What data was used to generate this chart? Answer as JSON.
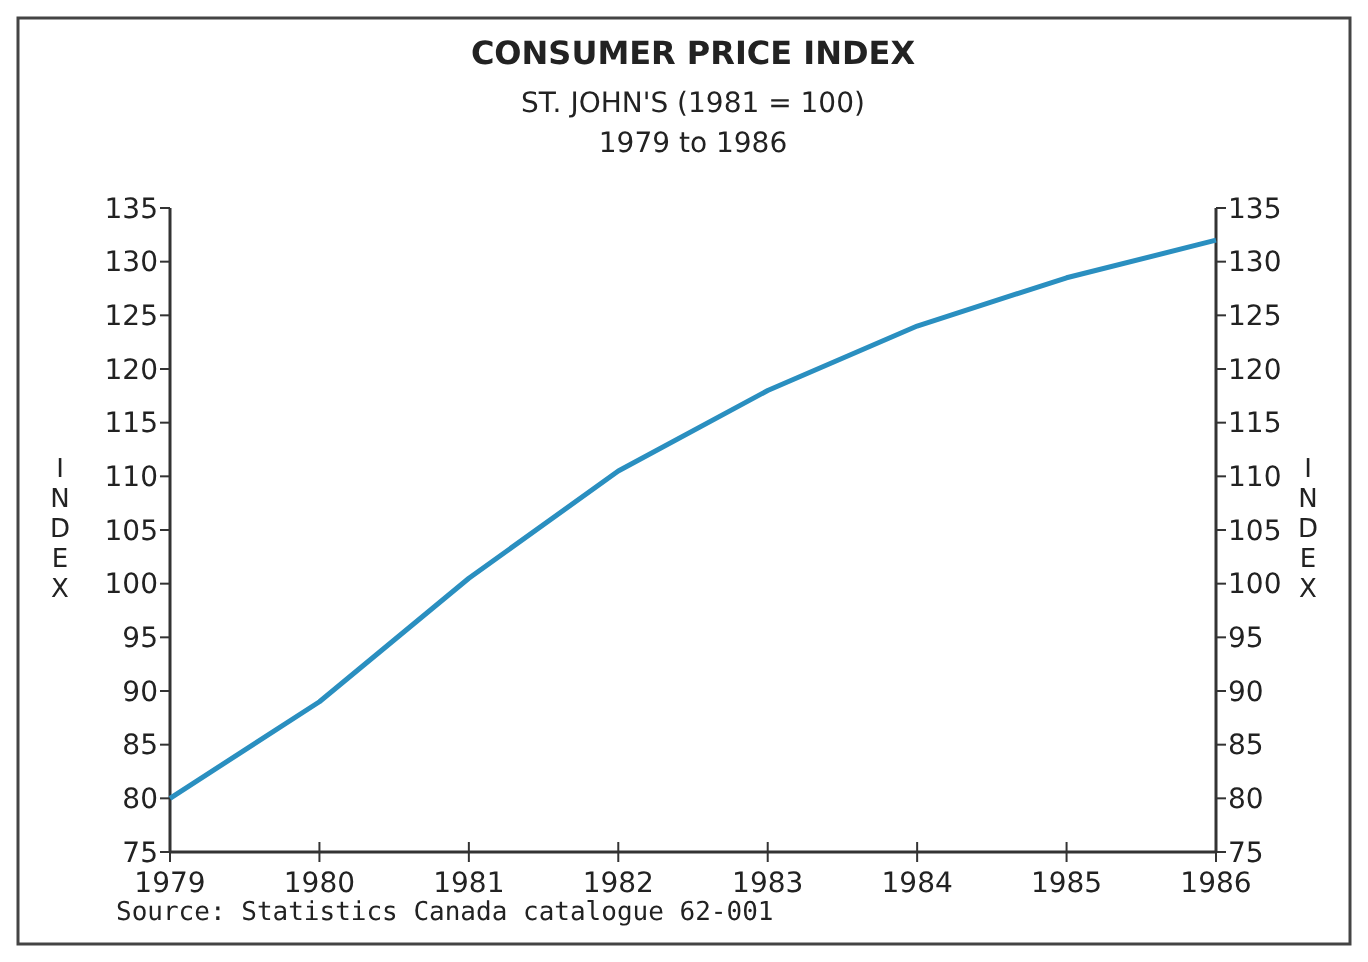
{
  "chart_data": {
    "type": "line",
    "title": "CONSUMER PRICE INDEX",
    "subtitle": "ST. JOHN'S (1981 = 100)\n1979 to 1986",
    "ylabel": "INDEX",
    "y2label": "INDEX",
    "x": [
      1979,
      1980,
      1981,
      1982,
      1983,
      1984,
      1985,
      1986
    ],
    "series": [
      {
        "color": "#2a8fc0",
        "values": [
          80,
          89,
          100.5,
          110.5,
          118,
          124,
          128.5,
          132
        ]
      }
    ],
    "xlim": [
      1979,
      1986
    ],
    "xticks": [
      1979,
      1980,
      1981,
      1982,
      1983,
      1984,
      1985,
      1986
    ],
    "ylim": [
      75,
      135
    ],
    "yticks": [
      75,
      80,
      85,
      90,
      95,
      100,
      105,
      110,
      115,
      120,
      125,
      130,
      135
    ],
    "y2lim": [
      75,
      135
    ],
    "y2ticks": [
      75,
      80,
      85,
      90,
      95,
      100,
      105,
      110,
      115,
      120,
      125,
      130,
      135
    ],
    "grid": false,
    "marker": "none",
    "line_style": "solid",
    "annotations": [
      "Source: Statistics Canada catalogue 62-001"
    ]
  }
}
